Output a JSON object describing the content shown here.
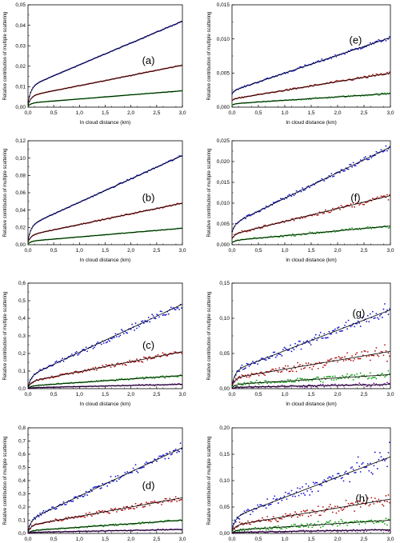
{
  "chart_data": [
    {
      "type": "scatter",
      "panel_label": "(a)",
      "xlabel": "In cloud distance (km)",
      "ylabel": "Relative contribution of multiple scattering",
      "xlim": [
        0,
        3
      ],
      "ylim": [
        0,
        0.05
      ],
      "xticks": [
        "0,0",
        "0,5",
        "1,0",
        "1,5",
        "2,0",
        "2,5",
        "3,0"
      ],
      "yticks": [
        "0,00",
        "0,01",
        "0,02",
        "0,03",
        "0,04",
        "0,05"
      ],
      "series": [
        {
          "color": "#1010d0",
          "start": 0.002,
          "knee": 0.01,
          "end": 0.042,
          "noise": 0.0002
        },
        {
          "color": "#b01010",
          "start": 0.001,
          "knee": 0.0055,
          "end": 0.0205,
          "noise": 0.0002
        },
        {
          "color": "#10a010",
          "start": 0.0005,
          "knee": 0.002,
          "end": 0.008,
          "noise": 0.0001
        }
      ]
    },
    {
      "type": "scatter",
      "panel_label": "(e)",
      "xlabel": "In cloud distance (km)",
      "ylabel": "Relative contribution of multiple scattering",
      "xlim": [
        0,
        3
      ],
      "ylim": [
        0,
        0.015
      ],
      "xticks": [
        "0,0",
        "0,5",
        "1,0",
        "1,5",
        "2,0",
        "2,5",
        "3,0"
      ],
      "yticks": [
        "0,000",
        "0,005",
        "0,010",
        "0,015"
      ],
      "series": [
        {
          "color": "#1010d0",
          "start": 0.002,
          "knee": 0.0024,
          "end": 0.0102,
          "noise": 0.0002
        },
        {
          "color": "#b01010",
          "start": 0.001,
          "knee": 0.0012,
          "end": 0.005,
          "noise": 0.00015
        },
        {
          "color": "#10a010",
          "start": 0.0003,
          "knee": 0.0005,
          "end": 0.002,
          "noise": 0.0001
        }
      ]
    },
    {
      "type": "scatter",
      "panel_label": "(b)",
      "xlabel": "In cloud distance (km)",
      "ylabel": "Relative contribution of multiple scattering",
      "xlim": [
        0,
        3
      ],
      "ylim": [
        0,
        0.12
      ],
      "xticks": [
        "0,0",
        "0,5",
        "1,0",
        "1,5",
        "2,0",
        "2,5",
        "3,0"
      ],
      "yticks": [
        "0,00",
        "0,02",
        "0,04",
        "0,06",
        "0,08",
        "0,10",
        "0,12"
      ],
      "series": [
        {
          "color": "#1010d0",
          "start": 0.005,
          "knee": 0.022,
          "end": 0.103,
          "noise": 0.0008
        },
        {
          "color": "#b01010",
          "start": 0.003,
          "knee": 0.011,
          "end": 0.048,
          "noise": 0.0007
        },
        {
          "color": "#10a010",
          "start": 0.001,
          "knee": 0.004,
          "end": 0.019,
          "noise": 0.0004
        }
      ]
    },
    {
      "type": "scatter",
      "panel_label": "(f)",
      "xlabel": "In cloud distance (km)",
      "ylabel": "Relative contribution of multiple scattering",
      "xlim": [
        0,
        3
      ],
      "ylim": [
        0,
        0.025
      ],
      "xticks": [
        "0,0",
        "0,5",
        "1,0",
        "1,5",
        "2,0",
        "2,5",
        "3,0"
      ],
      "yticks": [
        "0,000",
        "0,005",
        "0,010",
        "0,015",
        "0,020",
        "0,025"
      ],
      "series": [
        {
          "color": "#1010d0",
          "start": 0.003,
          "knee": 0.005,
          "end": 0.0235,
          "noise": 0.0006
        },
        {
          "color": "#b01010",
          "start": 0.0015,
          "knee": 0.0025,
          "end": 0.0118,
          "noise": 0.0005
        },
        {
          "color": "#10a010",
          "start": 0.0005,
          "knee": 0.001,
          "end": 0.0045,
          "noise": 0.0003
        }
      ]
    },
    {
      "type": "scatter",
      "panel_label": "(c)",
      "xlabel": "In cloud distance (km)",
      "ylabel": "Relative contribution of multiple scattering",
      "xlim": [
        0,
        3
      ],
      "ylim": [
        0,
        0.6
      ],
      "xticks": [
        "0,0",
        "0,5",
        "1,0",
        "1,5",
        "2,0",
        "2,5",
        "3,0"
      ],
      "yticks": [
        "0,0",
        "0,1",
        "0,2",
        "0,3",
        "0,4",
        "0,5",
        "0,6"
      ],
      "series": [
        {
          "color": "#1010d0",
          "start": 0.01,
          "knee": 0.07,
          "end": 0.48,
          "noise": 0.018
        },
        {
          "color": "#b01010",
          "start": 0.005,
          "knee": 0.04,
          "end": 0.21,
          "noise": 0.012
        },
        {
          "color": "#10a010",
          "start": 0.002,
          "knee": 0.015,
          "end": 0.075,
          "noise": 0.005
        },
        {
          "color": "#6a1090",
          "start": 0.001,
          "knee": 0.005,
          "end": 0.025,
          "noise": 0.003
        }
      ]
    },
    {
      "type": "scatter",
      "panel_label": "(g)",
      "xlabel": "In cloud distance (km)",
      "ylabel": "Relative contribution of multiple scattering",
      "xlim": [
        0,
        3
      ],
      "ylim": [
        0,
        0.15
      ],
      "xticks": [
        "0,0",
        "0,5",
        "1,0",
        "1,5",
        "2,0",
        "2,5",
        "3,0"
      ],
      "yticks": [
        "0,00",
        "0,05",
        "0,10",
        "0,15"
      ],
      "series": [
        {
          "color": "#1010d0",
          "start": 0.005,
          "knee": 0.025,
          "end": 0.112,
          "noise": 0.008
        },
        {
          "color": "#b01010",
          "start": 0.003,
          "knee": 0.015,
          "end": 0.053,
          "noise": 0.008
        },
        {
          "color": "#10a010",
          "start": 0.001,
          "knee": 0.006,
          "end": 0.02,
          "noise": 0.005
        },
        {
          "color": "#6a1090",
          "start": 0.0005,
          "knee": 0.002,
          "end": 0.006,
          "noise": 0.002
        }
      ]
    },
    {
      "type": "scatter",
      "panel_label": "(d)",
      "xlabel": "In cloud distance (km)",
      "ylabel": "Relative contribution of multiple scattering",
      "xlim": [
        0,
        3
      ],
      "ylim": [
        0,
        0.8
      ],
      "xticks": [
        "0,0",
        "0,5",
        "1,0",
        "1,5",
        "2,0",
        "2,5",
        "3,0"
      ],
      "yticks": [
        "0,0",
        "0,1",
        "0,2",
        "0,3",
        "0,4",
        "0,5",
        "0,6",
        "0,7",
        "0,8"
      ],
      "series": [
        {
          "color": "#1010d0",
          "start": 0.02,
          "knee": 0.1,
          "end": 0.65,
          "noise": 0.03
        },
        {
          "color": "#b01010",
          "start": 0.01,
          "knee": 0.06,
          "end": 0.27,
          "noise": 0.02
        },
        {
          "color": "#10a010",
          "start": 0.003,
          "knee": 0.02,
          "end": 0.1,
          "noise": 0.008
        },
        {
          "color": "#6a1090",
          "start": 0.001,
          "knee": 0.008,
          "end": 0.03,
          "noise": 0.004
        }
      ]
    },
    {
      "type": "scatter",
      "panel_label": "(h)",
      "xlabel": "In cloud distance (km)",
      "ylabel": "Relative contribution of multiple scattering",
      "xlim": [
        0,
        3
      ],
      "ylim": [
        0,
        0.2
      ],
      "xticks": [
        "0,0",
        "0,5",
        "1,0",
        "1,5",
        "2,0",
        "2,5",
        "3,0"
      ],
      "yticks": [
        "0,00",
        "0,05",
        "0,10",
        "0,15",
        "0,20"
      ],
      "series": [
        {
          "color": "#1010d0",
          "start": 0.005,
          "knee": 0.03,
          "end": 0.145,
          "noise": 0.014
        },
        {
          "color": "#b01010",
          "start": 0.003,
          "knee": 0.015,
          "end": 0.065,
          "noise": 0.01
        },
        {
          "color": "#10a010",
          "start": 0.001,
          "knee": 0.006,
          "end": 0.025,
          "noise": 0.005
        },
        {
          "color": "#6a1090",
          "start": 0.0005,
          "knee": 0.002,
          "end": 0.007,
          "noise": 0.002
        }
      ]
    }
  ]
}
